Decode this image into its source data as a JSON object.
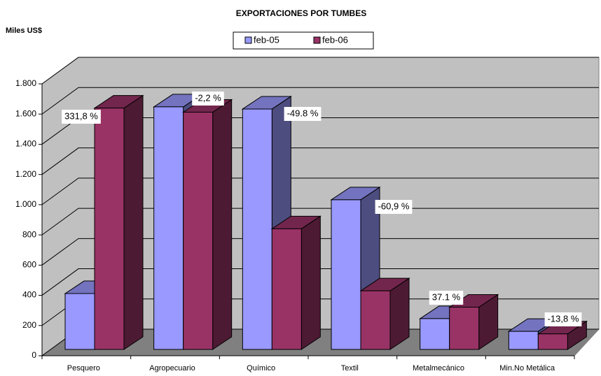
{
  "chart_data": {
    "type": "bar3d",
    "title": "EXPORTACIONES POR TUMBES",
    "y_label": "Miles US$",
    "categories": [
      "Pesquero",
      "Agropecuario",
      "Químico",
      "Textil",
      "Metalmecánico",
      "Min.No Metálica"
    ],
    "series": [
      {
        "name": "feb-05",
        "color": "#9999ff",
        "values": [
          370,
          1606,
          1592,
          991,
          204,
          120
        ]
      },
      {
        "name": "feb-06",
        "color": "#993366",
        "values": [
          1598,
          1571,
          799,
          388,
          280,
          103
        ]
      }
    ],
    "annotations": [
      "331,8 %",
      "-2,2 %",
      "-49.8 %",
      "-60,9 %",
      "37.1 %",
      "-13,8 %"
    ],
    "ylim": [
      0,
      1800
    ],
    "yticks": [
      0,
      200,
      400,
      600,
      800,
      {
        "value": 1000,
        "label": "1.000"
      },
      {
        "value": 1200,
        "label": "1.200"
      },
      {
        "value": 1400,
        "label": "1.400"
      },
      {
        "value": 1600,
        "label": "1.600"
      },
      {
        "value": 1800,
        "label": "1.800"
      }
    ],
    "grid": true
  }
}
